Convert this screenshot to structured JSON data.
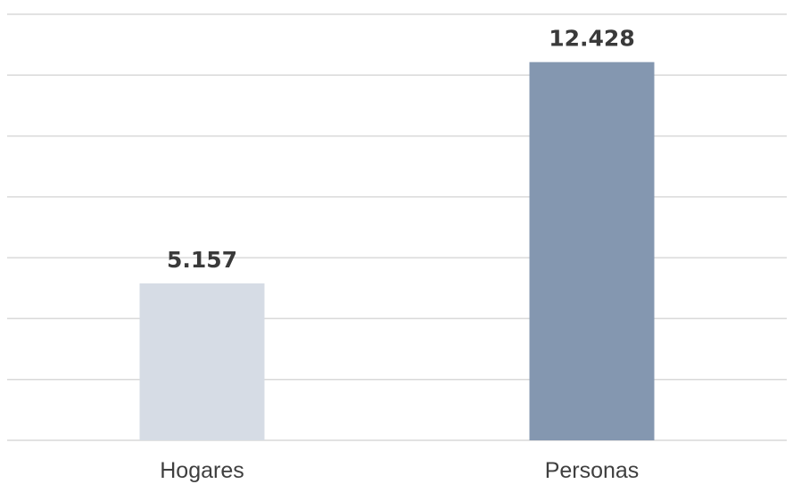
{
  "chart_data": {
    "type": "bar",
    "categories": [
      "Hogares",
      "Personas"
    ],
    "values": [
      5157,
      12428
    ],
    "value_labels": [
      "5.157",
      "12.428"
    ],
    "ylim": [
      0,
      14000
    ],
    "grid_step": 2000,
    "grid": true,
    "bar_colors": [
      "#d6dce5",
      "#8497b0"
    ],
    "title": "",
    "xlabel": "",
    "ylabel": ""
  }
}
